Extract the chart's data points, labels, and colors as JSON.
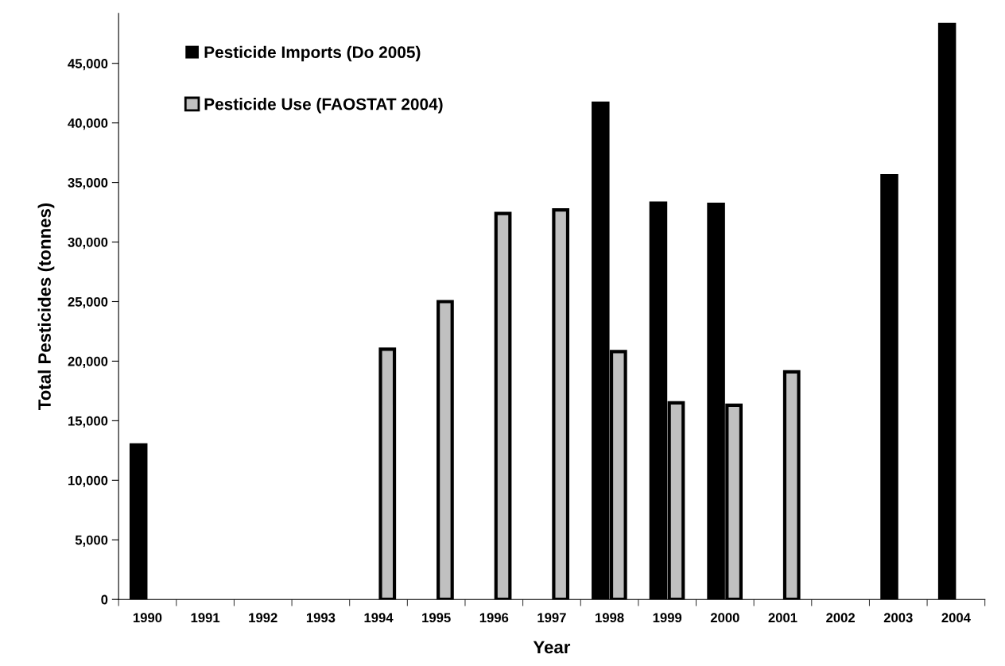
{
  "chart_data": {
    "type": "bar",
    "xlabel": "Year",
    "ylabel": "Total Pesticides (tonnes)",
    "categories": [
      "1990",
      "1991",
      "1992",
      "1993",
      "1994",
      "1995",
      "1996",
      "1997",
      "1998",
      "1999",
      "2000",
      "2001",
      "2002",
      "2003",
      "2004"
    ],
    "series": [
      {
        "name": "Pesticide Imports (Do 2005)",
        "color": "#000000",
        "values": [
          13100,
          null,
          null,
          null,
          null,
          null,
          null,
          null,
          41800,
          33400,
          33300,
          null,
          null,
          35700,
          48400
        ]
      },
      {
        "name": "Pesticide Use (FAOSTAT 2004)",
        "color": "#c0c0c0",
        "values": [
          null,
          null,
          null,
          null,
          21000,
          25000,
          32400,
          32700,
          20800,
          16500,
          16300,
          19100,
          null,
          null,
          null
        ]
      }
    ],
    "ylim": [
      0,
      49200
    ],
    "yticks": [
      {
        "value": 0,
        "label": "0"
      },
      {
        "value": 5000,
        "label": "5,000"
      },
      {
        "value": 10000,
        "label": "10,000"
      },
      {
        "value": 15000,
        "label": "15,000"
      },
      {
        "value": 20000,
        "label": "20,000"
      },
      {
        "value": 25000,
        "label": "25,000"
      },
      {
        "value": 30000,
        "label": "30,000"
      },
      {
        "value": 35000,
        "label": "35,000"
      },
      {
        "value": 40000,
        "label": "40,000"
      },
      {
        "value": 45000,
        "label": "45,000"
      }
    ],
    "grid": false,
    "legend": "top left"
  }
}
